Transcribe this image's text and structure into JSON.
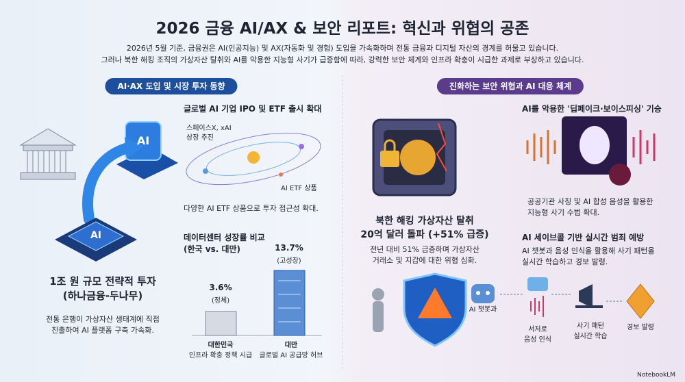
{
  "header": {
    "title": "2026 금융 AI/AX & 보안 리포트: 혁신과 위협의 공존",
    "subtitle": [
      "2026년 5월 기준, 금융권은 AI(인공지능) 및 AX(자동화 및 경험) 도입을 가속화하며 전통 금융과 디지털 자산의 경계를 허물고 있습니다.",
      "그러나 북한 해킹 조직의 가상자산 탈취와 AI를 악용한 지능형 사기가 급증함에 따라, 강력한 보안 체계와 인프라 확충이 시급한 과제로 부상하고 있습니다."
    ]
  },
  "left": {
    "heading": "AI·AX 도입 및 시장 투자 동향",
    "investment": {
      "icon_tile": "AI",
      "icon_chip": "AI",
      "title": [
        "1조 원 규모 전략적 투자",
        "(하나금융-두나무)"
      ],
      "text": [
        "전통 은행이 가상자산 생태계에 직접",
        "진출하여 AI 플랫폼 구축 가속화."
      ]
    },
    "ipo": {
      "title": "글로벌 AI 기업 IPO 및 ETF 출시 확대",
      "label_top": [
        "스페이스X, xAI",
        "상장 추진"
      ],
      "label_bottom": "AI ETF 상품",
      "text": "다양한 AI ETF 상품으로 투자 접근성 확대."
    },
    "datacenter": {
      "title": [
        "데이터센터 성장률 비교",
        "(한국 vs. 대만)"
      ],
      "korea": {
        "rate": "3.6%",
        "note": "(정체)",
        "name": "대한민국",
        "desc": "인프라 확충 정책 시급"
      },
      "taiwan": {
        "rate": "13.7%",
        "note": "(고성장)",
        "name": "대만",
        "desc": "글로벌 AI 공급망 허브"
      }
    }
  },
  "right": {
    "heading": "진화하는 보안 위협과 AI 대응 체계",
    "hacking": {
      "title": [
        "북한 해킹 가상자산 탈취",
        "20억 달러 돌파 (+51% 급증)"
      ],
      "text": [
        "전년 대비 51% 급증하며 가상자산",
        "거래소 및 지갑에 대한 위협 심화."
      ]
    },
    "deepfake": {
      "title": "AI를 악용한 '딥페이크·보이스피싱' 기승",
      "text": [
        "공공기관 사칭 및 AI 합성 음성을 활용한",
        "지능형 사기 수법 확대."
      ]
    },
    "savecall": {
      "title": "AI 세이브콜 기반 실시간 범죄 예방",
      "text": [
        "AI 챗봇과 음성 인식을 활용해 사기 패턴을",
        "실시간 학습하고 경보 발령."
      ]
    },
    "flow": [
      [
        "AI 챗봇과"
      ],
      [
        "서저로",
        "음성 인식"
      ],
      [
        "사기 패턴",
        "실시간 학습"
      ],
      [
        "경보 발령"
      ]
    ]
  },
  "footer": "NotebookLM"
}
